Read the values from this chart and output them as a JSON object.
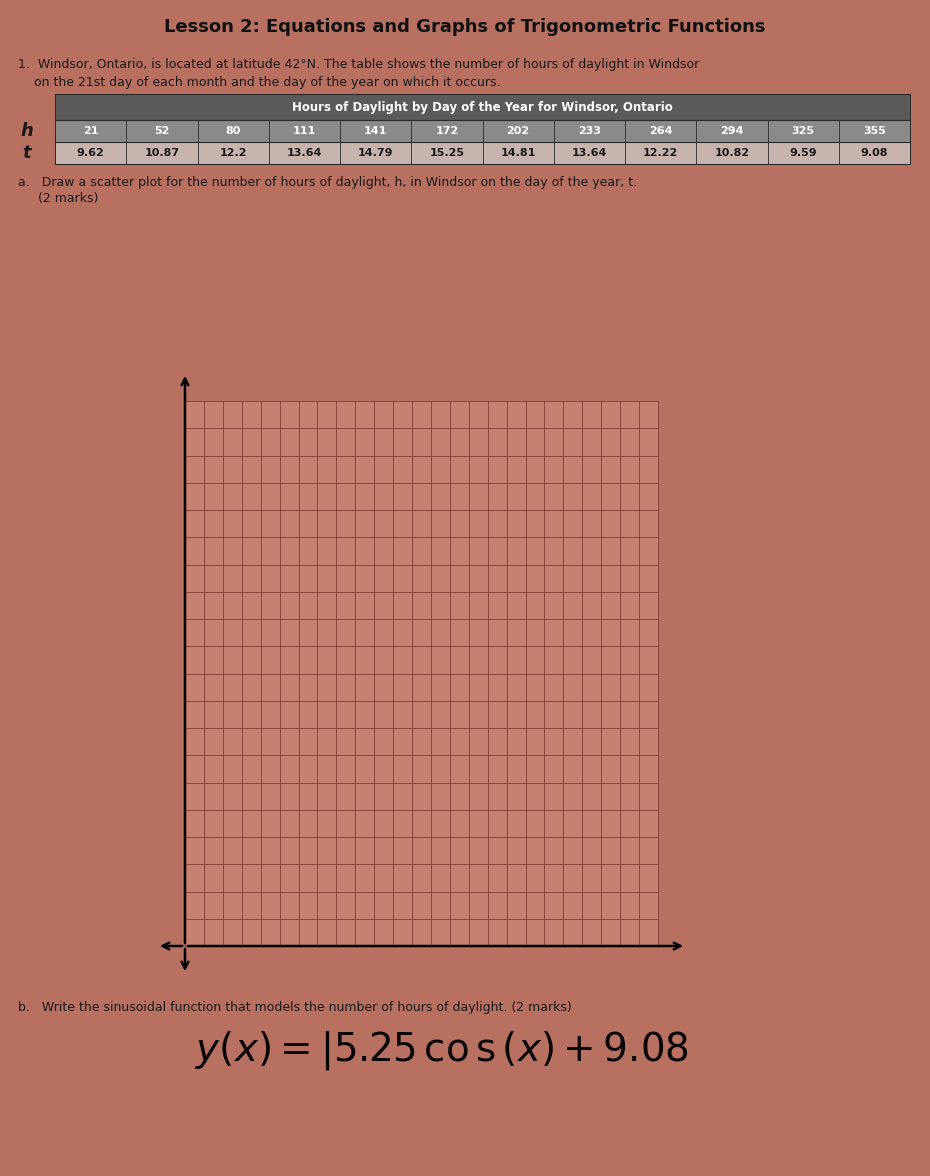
{
  "title": "Lesson 2: Equations and Graphs of Trigonometric Functions",
  "question_text_1": "1.  Windsor, Ontario, is located at latitude 42°N. The table shows the number of hours of daylight in Windsor",
  "question_text_2": "    on the 21st day of each month and the day of the year on which it occurs.",
  "table_title": "Hours of Daylight by Day of the Year for Windsor, Ontario",
  "row_h_label": "h",
  "row_t_label": "t",
  "t_values": [
    21,
    52,
    80,
    111,
    141,
    172,
    202,
    233,
    264,
    294,
    325,
    355
  ],
  "h_values": [
    9.62,
    10.87,
    12.2,
    13.64,
    14.79,
    15.25,
    14.81,
    13.64,
    12.22,
    10.82,
    9.59,
    9.08
  ],
  "part_a_line1": "a.   Draw a scatter plot for the number of hours of daylight, h, in Windsor on the day of the year, t.",
  "part_a_line2": "     (2 marks)",
  "part_b_text": "b.   Write the sinusoidal function that models the number of hours of daylight. (2 marks)",
  "formula_line1": "y(x) = |s.25 cos (x)+ 9,08",
  "bg_color": "#b87060",
  "table_header_bg": "#5a5a5a",
  "table_row1_bg": "#8a8a8a",
  "table_row2_bg": "#c8b4ae",
  "table_border": "#2a2a2a",
  "grid_line_color": "#7a3a30",
  "grid_bg_color": "#c88070",
  "text_color": "#1a1a1a",
  "title_color": "#111111",
  "grid_cols": 25,
  "grid_rows": 20
}
